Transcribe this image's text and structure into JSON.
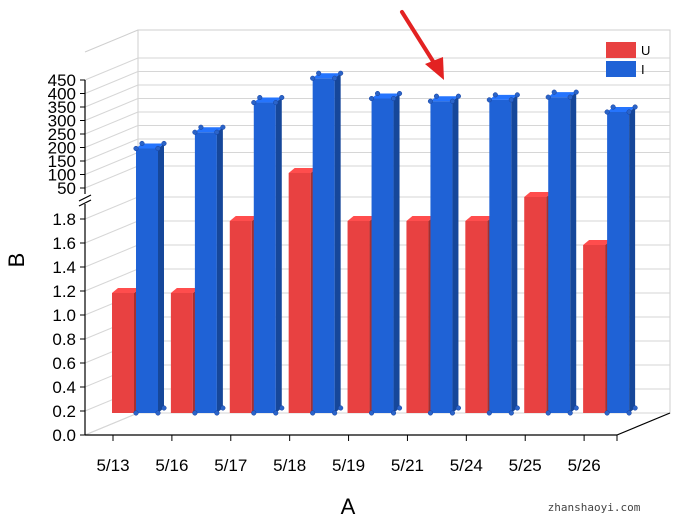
{
  "chart_data": {
    "type": "bar",
    "style": "3d-clustered-broken-axis",
    "categories": [
      "5/13",
      "5/16",
      "5/17",
      "5/18",
      "5/19",
      "5/21",
      "5/24",
      "5/25",
      "5/26"
    ],
    "series": [
      {
        "name": "U",
        "axis": "lower",
        "color": "#e84141",
        "values": [
          1.0,
          1.0,
          1.6,
          2.0,
          1.6,
          1.6,
          1.6,
          1.8,
          1.4
        ]
      },
      {
        "name": "I",
        "axis": "upper",
        "color": "#1f62d6",
        "values": [
          115,
          175,
          285,
          375,
          300,
          290,
          295,
          305,
          250
        ]
      }
    ],
    "xlabel": "A",
    "ylabel": "B",
    "lower_axis": {
      "ylim": [
        0,
        2.0
      ],
      "ticks": [
        "0.0",
        "0.2",
        "0.4",
        "0.6",
        "0.8",
        "1.0",
        "1.2",
        "1.4",
        "1.6",
        "1.8"
      ]
    },
    "upper_axis": {
      "ylim": [
        50,
        450
      ],
      "ticks": [
        "50",
        "100",
        "150",
        "200",
        "250",
        "300",
        "350",
        "400",
        "450"
      ]
    },
    "grid": true,
    "legend_position": "top-right",
    "annotation": "red arrow pointing at the 5/21 bar"
  },
  "watermark": "zhanshaoyi.com"
}
